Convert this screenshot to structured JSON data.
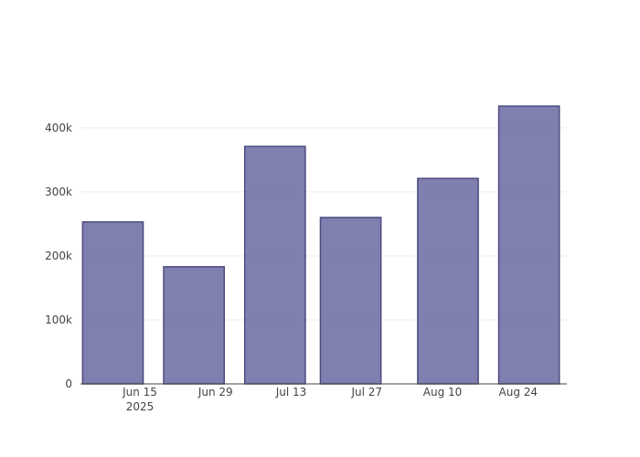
{
  "chart_data": {
    "type": "bar",
    "x": [
      "2025-06-10",
      "2025-06-25",
      "2025-07-10",
      "2025-07-24",
      "2025-08-11",
      "2025-08-26"
    ],
    "values": [
      253000,
      183000,
      371000,
      260000,
      321000,
      434000
    ],
    "color": "rgba(85,85,150,0.75)",
    "line_color": "#4b4a80",
    "xlim": [
      "2025-06-04",
      "2025-09-02"
    ],
    "xticks": [
      {
        "value": "2025-06-15",
        "label": "Jun 15\n2025"
      },
      {
        "value": "2025-06-29",
        "label": "Jun 29"
      },
      {
        "value": "2025-07-13",
        "label": "Jul 13"
      },
      {
        "value": "2025-07-27",
        "label": "Jul 27"
      },
      {
        "value": "2025-08-10",
        "label": "Aug 10"
      },
      {
        "value": "2025-08-24",
        "label": "Aug 24"
      }
    ],
    "ylim": [
      0,
      457000
    ],
    "yticks": [
      0,
      {
        "value": 100000,
        "label": "100k"
      },
      {
        "value": 200000,
        "label": "200k"
      },
      {
        "value": 300000,
        "label": "300k"
      },
      {
        "value": 400000,
        "label": "400k"
      }
    ],
    "grid": true
  }
}
